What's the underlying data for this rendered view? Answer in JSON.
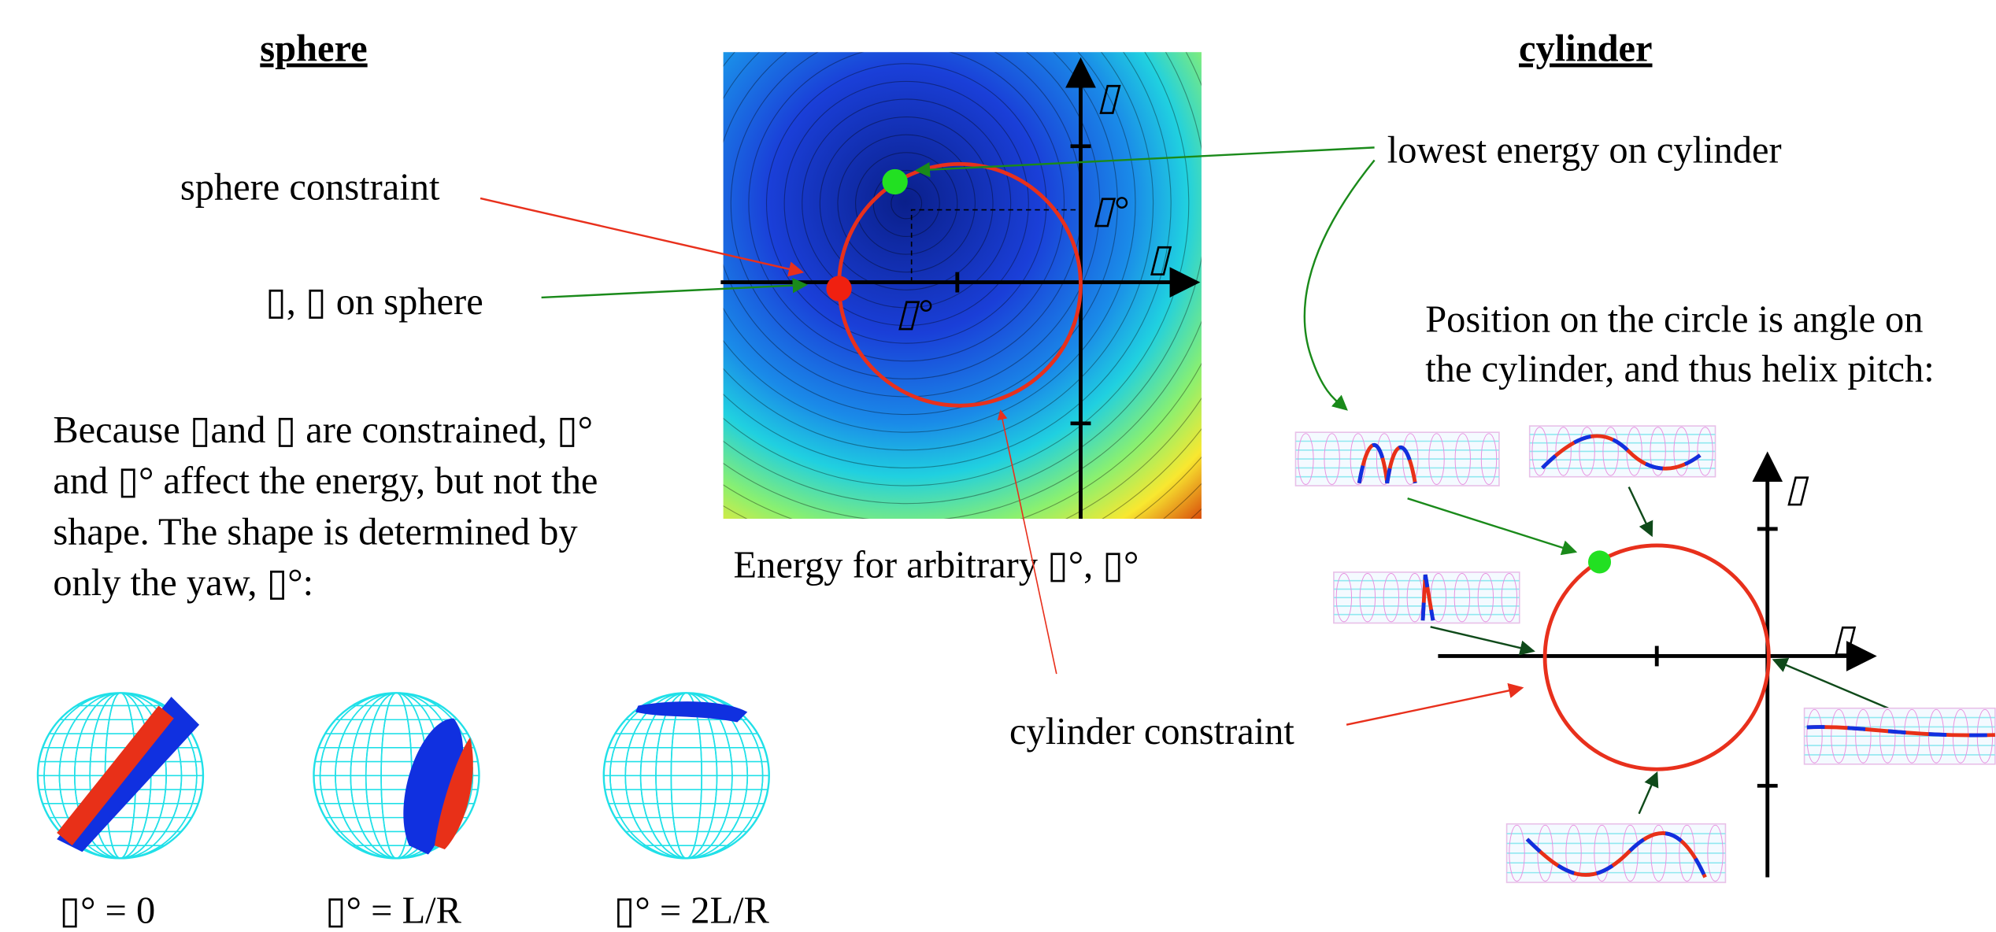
{
  "headings": {
    "sphere": "sphere",
    "cylinder": "cylinder"
  },
  "energy_plot": {
    "caption": "Energy for arbitrary ▯°, ▯°",
    "axis_labels": {
      "y": "▯",
      "x": "▯",
      "y_offset": "▯°",
      "x_offset": "▯°"
    }
  },
  "annotations": {
    "sphere_constraint": "sphere constraint",
    "on_sphere": "▯, ▯ on sphere",
    "lowest_energy": "lowest energy on cylinder",
    "cylinder_constraint": "cylinder constraint",
    "position_note": [
      "Position on the circle is angle on",
      "the cylinder, and thus helix pitch:"
    ]
  },
  "explanation": [
    "Because ▯and ▯ are constrained, ▯°",
    "and ▯° affect the energy, but not the",
    "shape.  The shape is determined by",
    "only the yaw, ▯°:"
  ],
  "sphere_examples": [
    {
      "caption": "▯° = 0"
    },
    {
      "caption": "▯° = L/R"
    },
    {
      "caption": "▯° = 2L/R"
    }
  ],
  "circle_plot": {
    "axis_labels": {
      "y": "▯",
      "x": "▯"
    }
  }
}
